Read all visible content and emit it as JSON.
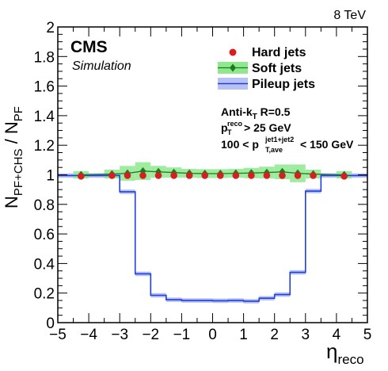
{
  "chart_data": {
    "type": "step-histogram",
    "energy_label": "8 TeV",
    "experiment": "CMS",
    "subtitle": "Simulation",
    "ylabel_main": "N",
    "ylabel_sub": "PF+CHS",
    "ylabel_slash": " / N",
    "ylabel_sub2": "PF",
    "xlabel_main": "η",
    "xlabel_sub": "reco",
    "xlim": [
      -5,
      5
    ],
    "ylim": [
      0,
      2
    ],
    "x_ticks": [
      -5,
      -4,
      -3,
      -2,
      -1,
      0,
      1,
      2,
      3,
      4,
      5
    ],
    "x_tick_labels": [
      "−5",
      "−4",
      "−3",
      "−2",
      "−1",
      "0",
      "1",
      "2",
      "3",
      "4",
      "5"
    ],
    "y_ticks": [
      0,
      0.2,
      0.4,
      0.6,
      0.8,
      1,
      1.2,
      1.4,
      1.6,
      1.8,
      2
    ],
    "y_tick_labels": [
      "0",
      "0.2",
      "0.4",
      "0.6",
      "0.8",
      "1",
      "1.2",
      "1.4",
      "1.6",
      "1.8",
      "2"
    ],
    "legend": {
      "position": "top-right",
      "entries": [
        {
          "label": "Hard jets",
          "series": "hard"
        },
        {
          "label": "Soft jets",
          "series": "soft"
        },
        {
          "label": "Pileup jets",
          "series": "pileup"
        }
      ]
    },
    "annotations": {
      "algo_a": "Anti-k",
      "algo_sub": "T",
      "algo_b": " R=0.5",
      "pt_p": "p",
      "pt_sup": "reco",
      "pt_sub": "T",
      "pt_rest": " > 25 GeV",
      "ave_a": "100 < p",
      "ave_sup": "jet1+jet2",
      "ave_sub": "T,ave",
      "ave_b": " < 150 GeV"
    },
    "series": {
      "pileup": {
        "name": "Pileup jets",
        "color": "#1f3fe0",
        "band_color": "#b8c2f2",
        "bin_edges": [
          -5,
          -4.5,
          -4,
          -3.5,
          -3,
          -2.5,
          -2,
          -1.5,
          -1,
          -0.5,
          0,
          0.5,
          1,
          1.5,
          2,
          2.5,
          3,
          3.5,
          4,
          4.5,
          5
        ],
        "values": [
          0.995,
          0.995,
          0.995,
          0.995,
          0.885,
          0.33,
          0.185,
          0.155,
          0.15,
          0.15,
          0.148,
          0.15,
          0.145,
          0.165,
          0.19,
          0.34,
          0.89,
          0.995,
          0.995,
          0.995
        ],
        "uncertainty": 0.015
      },
      "hard": {
        "name": "Hard jets",
        "color": "#d42020",
        "x": [
          -4.25,
          -3.25,
          -2.75,
          -2.25,
          -1.75,
          -1.25,
          -0.75,
          -0.25,
          0.25,
          0.75,
          1.25,
          1.75,
          2.25,
          2.75,
          3.25,
          4.25
        ],
        "y": [
          0.99,
          0.995,
          0.995,
          0.995,
          0.995,
          0.995,
          0.995,
          0.995,
          0.995,
          0.995,
          0.995,
          0.995,
          0.995,
          0.995,
          0.995,
          0.99
        ],
        "errors": [
          0.01,
          0.01,
          0.01,
          0.01,
          0.01,
          0.01,
          0.01,
          0.01,
          0.01,
          0.01,
          0.01,
          0.01,
          0.01,
          0.01,
          0.01,
          0.01
        ]
      },
      "soft": {
        "name": "Soft jets",
        "color": "#1f7a1f",
        "band_color": "#8ee88e",
        "x": [
          -4.25,
          -3.25,
          -2.75,
          -2.25,
          -1.75,
          -1.25,
          -0.75,
          -0.25,
          0.25,
          0.75,
          1.25,
          1.75,
          2.25,
          2.75,
          3.25,
          4.25
        ],
        "y": [
          1.0,
          1.005,
          1.01,
          1.025,
          1.02,
          1.015,
          1.01,
          1.008,
          1.008,
          1.01,
          1.012,
          1.015,
          1.02,
          1.01,
          1.005,
          1.0
        ],
        "band": [
          0.025,
          0.03,
          0.05,
          0.06,
          0.04,
          0.035,
          0.03,
          0.03,
          0.03,
          0.03,
          0.035,
          0.04,
          0.05,
          0.06,
          0.03,
          0.025
        ]
      }
    }
  }
}
